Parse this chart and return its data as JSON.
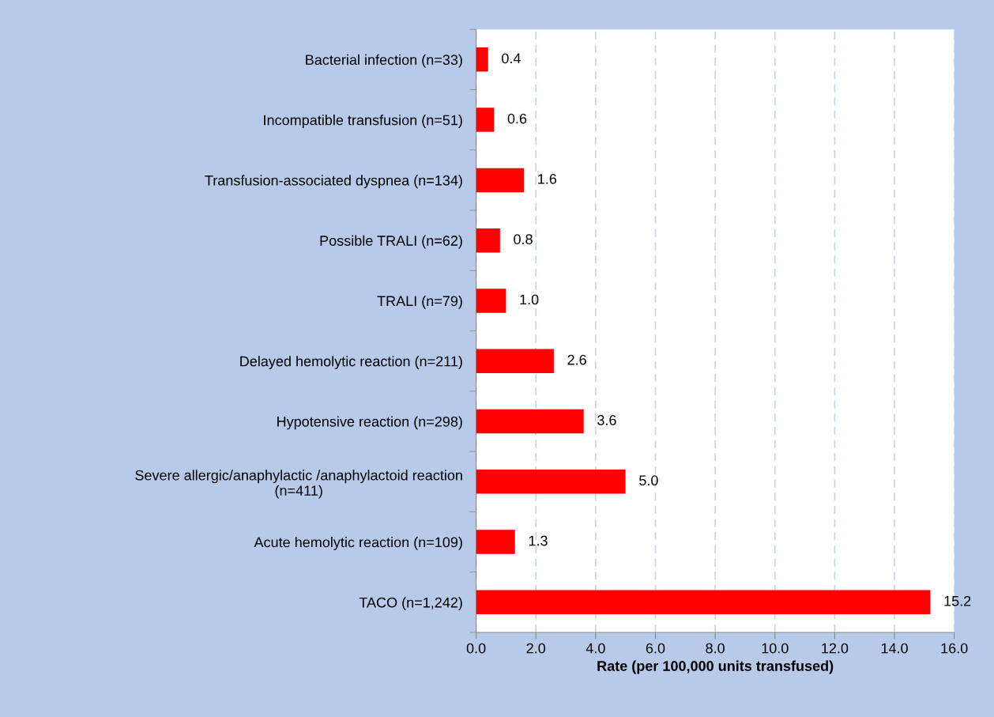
{
  "chart_data": {
    "type": "bar",
    "orientation": "horizontal",
    "categories": [
      "Bacterial infection (n=33)",
      "Incompatible transfusion (n=51)",
      "Transfusion-associated dyspnea (n=134)",
      "Possible TRALI (n=62)",
      "TRALI (n=79)",
      "Delayed hemolytic reaction (n=211)",
      "Hypotensive reaction (n=298)",
      "Severe allergic/anaphylactic /anaphylactoid reaction\n(n=411)",
      "Acute hemolytic reaction (n=109)",
      "TACO (n=1,242)"
    ],
    "values": [
      0.4,
      0.6,
      1.6,
      0.8,
      1.0,
      2.6,
      3.6,
      5.0,
      1.3,
      15.2
    ],
    "value_labels": [
      "0.4",
      "0.6",
      "1.6",
      "0.8",
      "1.0",
      "2.6",
      "3.6",
      "5.0",
      "1.3",
      "15.2"
    ],
    "color": "#ff0000",
    "xlabel": "Rate (per 100,000 units transfused)",
    "xlim": [
      0,
      16
    ],
    "xticks": [
      {
        "value": 0,
        "label": "0.0"
      },
      {
        "value": 2,
        "label": "2.0"
      },
      {
        "value": 4,
        "label": "4.0"
      },
      {
        "value": 6,
        "label": "6.0"
      },
      {
        "value": 8,
        "label": "8.0"
      },
      {
        "value": 10,
        "label": "10.0"
      },
      {
        "value": 12,
        "label": "12.0"
      },
      {
        "value": 14,
        "label": "14.0"
      },
      {
        "value": 16,
        "label": "16.0"
      }
    ],
    "grid": "x",
    "legend": false
  }
}
